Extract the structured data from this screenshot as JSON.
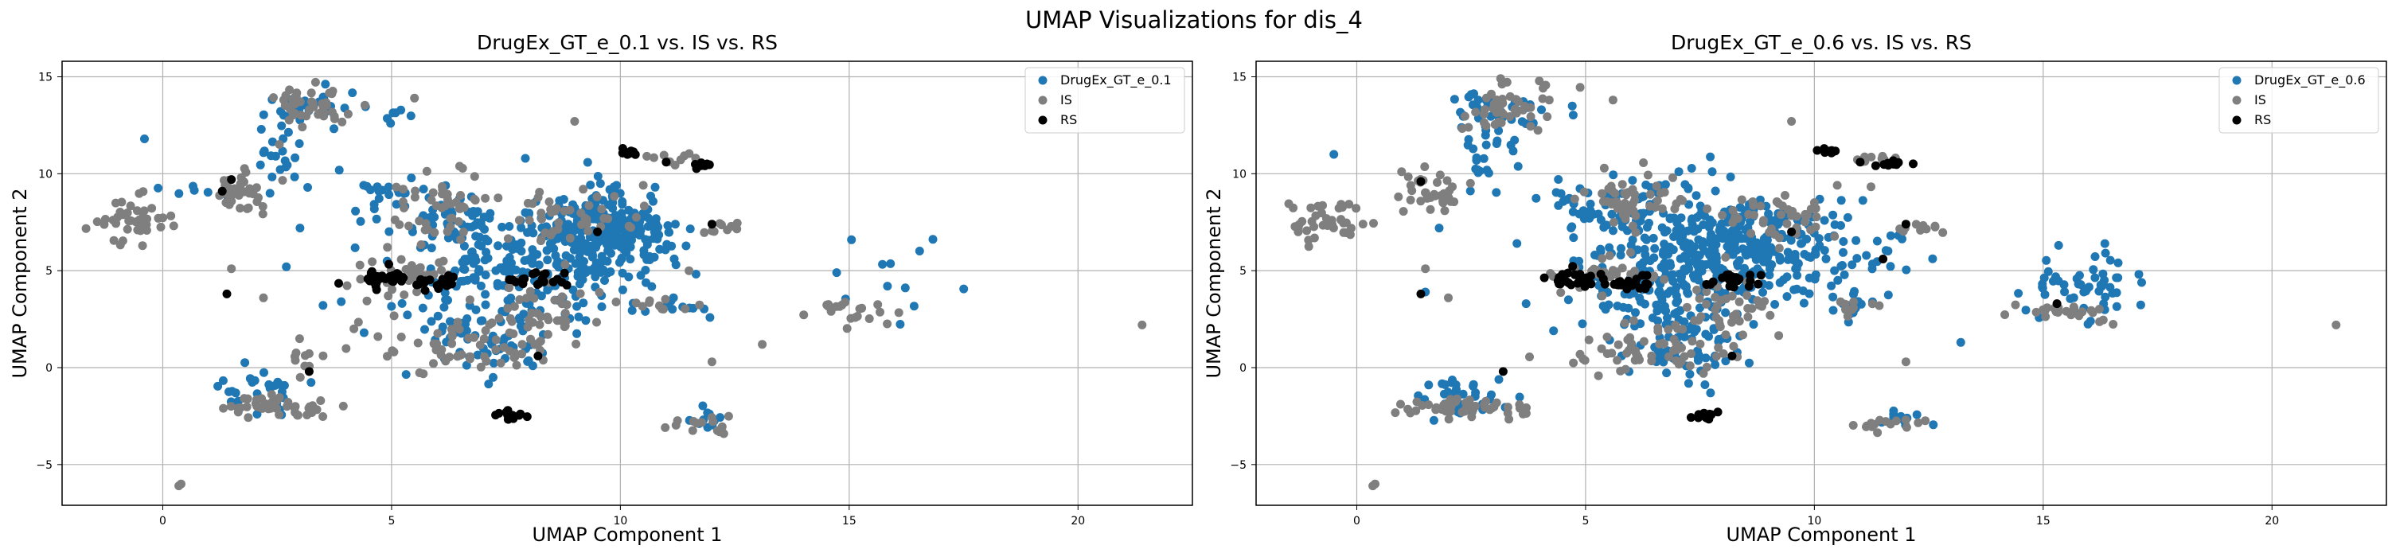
{
  "figure": {
    "title": "UMAP Visualizations for dis_4"
  },
  "colors": {
    "series_blue": "#1f77b4",
    "series_gray": "#7f7f7f",
    "series_black": "#000000",
    "grid": "#b0b0b0"
  },
  "chart_data": [
    {
      "type": "scatter",
      "title": "DrugEx_GT_e_0.1 vs. IS vs. RS",
      "xlabel": "UMAP Component 1",
      "ylabel": "UMAP Component 2",
      "xlim": [
        -2.2,
        22.5
      ],
      "ylim": [
        -7.1,
        15.8
      ],
      "xticks": [
        0,
        5,
        10,
        15,
        20
      ],
      "yticks": [
        -5,
        0,
        5,
        10,
        15
      ],
      "grid": true,
      "legend_position": "top-right",
      "series": [
        {
          "name": "DrugEx_GT_e_0.1",
          "color": "#1f77b4",
          "clusters": [
            {
              "cx": 9.6,
              "cy": 6.9,
              "sx": 0.7,
              "sy": 1.0,
              "n": 260
            },
            {
              "cx": 7.8,
              "cy": 5.2,
              "sx": 1.3,
              "sy": 1.6,
              "n": 220
            },
            {
              "cx": 6.2,
              "cy": 7.5,
              "sx": 0.6,
              "sy": 0.8,
              "n": 40
            },
            {
              "cx": 7.0,
              "cy": 1.5,
              "sx": 0.8,
              "sy": 1.0,
              "n": 50
            },
            {
              "cx": 3.1,
              "cy": 13.4,
              "sx": 0.5,
              "sy": 0.5,
              "n": 30
            },
            {
              "cx": 2.5,
              "cy": 11.0,
              "sx": 0.3,
              "sy": 0.9,
              "n": 20
            },
            {
              "cx": 2.2,
              "cy": -1.3,
              "sx": 0.5,
              "sy": 0.5,
              "n": 30
            },
            {
              "cx": 4.9,
              "cy": 8.6,
              "sx": 0.5,
              "sy": 0.6,
              "n": 25
            },
            {
              "cx": 11.0,
              "cy": 3.3,
              "sx": 0.5,
              "sy": 0.3,
              "n": 12
            },
            {
              "cx": 11.8,
              "cy": -2.6,
              "sx": 0.3,
              "sy": 0.4,
              "n": 10
            },
            {
              "cx": 15.8,
              "cy": 4.0,
              "sx": 0.6,
              "sy": 1.2,
              "n": 12
            },
            {
              "cx": 5.1,
              "cy": 12.9,
              "sx": 0.2,
              "sy": 0.2,
              "n": 6
            },
            {
              "cx": 0.7,
              "cy": 9.1,
              "sx": 0.4,
              "sy": 0.2,
              "n": 8
            }
          ],
          "points": [
            {
              "x": -0.4,
              "y": 11.8
            },
            {
              "x": 3.0,
              "y": 7.2
            },
            {
              "x": 2.7,
              "y": 5.2
            },
            {
              "x": 3.9,
              "y": 3.4
            },
            {
              "x": 4.4,
              "y": 1.8
            },
            {
              "x": 11.2,
              "y": 7.4
            }
          ]
        },
        {
          "name": "IS",
          "color": "#7f7f7f",
          "clusters": [
            {
              "cx": 3.3,
              "cy": 13.6,
              "sx": 0.5,
              "sy": 0.6,
              "n": 45
            },
            {
              "cx": 1.7,
              "cy": 9.0,
              "sx": 0.3,
              "sy": 0.6,
              "n": 35
            },
            {
              "cx": -0.7,
              "cy": 7.6,
              "sx": 0.4,
              "sy": 0.6,
              "n": 40
            },
            {
              "cx": 6.2,
              "cy": 8.5,
              "sx": 0.6,
              "sy": 0.9,
              "n": 50
            },
            {
              "cx": 6.5,
              "cy": 1.0,
              "sx": 0.9,
              "sy": 0.6,
              "n": 60
            },
            {
              "cx": 8.4,
              "cy": 3.0,
              "sx": 0.6,
              "sy": 0.9,
              "n": 40
            },
            {
              "cx": 8.9,
              "cy": 7.8,
              "sx": 0.7,
              "sy": 0.6,
              "n": 40
            },
            {
              "cx": 2.5,
              "cy": -2.0,
              "sx": 0.6,
              "sy": 0.3,
              "n": 45
            },
            {
              "cx": 5.3,
              "cy": 4.7,
              "sx": 0.5,
              "sy": 0.6,
              "n": 35
            },
            {
              "cx": 15.2,
              "cy": 3.0,
              "sx": 0.5,
              "sy": 0.3,
              "n": 20
            },
            {
              "cx": 11.6,
              "cy": -2.9,
              "sx": 0.4,
              "sy": 0.3,
              "n": 15
            },
            {
              "cx": 12.3,
              "cy": 7.2,
              "sx": 0.3,
              "sy": 0.2,
              "n": 10
            },
            {
              "cx": 11.2,
              "cy": 10.8,
              "sx": 0.3,
              "sy": 0.2,
              "n": 10
            },
            {
              "cx": 10.8,
              "cy": 3.2,
              "sx": 0.3,
              "sy": 0.2,
              "n": 10
            },
            {
              "cx": 3.2,
              "cy": 0.5,
              "sx": 0.2,
              "sy": 0.5,
              "n": 10
            }
          ],
          "points": [
            {
              "x": 0.4,
              "y": -6.0
            },
            {
              "x": 0.35,
              "y": -6.1
            },
            {
              "x": 21.4,
              "y": 2.2
            },
            {
              "x": 13.1,
              "y": 1.2
            },
            {
              "x": 12.0,
              "y": 0.3
            },
            {
              "x": 5.5,
              "y": 13.9
            },
            {
              "x": 9.0,
              "y": 12.7
            },
            {
              "x": 11.5,
              "y": 5.0
            },
            {
              "x": 1.5,
              "y": 5.1
            },
            {
              "x": 2.2,
              "y": 3.6
            },
            {
              "x": 10.5,
              "y": 9.4
            }
          ]
        },
        {
          "name": "RS",
          "color": "#000000",
          "clusters": [
            {
              "cx": 4.8,
              "cy": 4.6,
              "sx": 0.35,
              "sy": 0.25,
              "n": 30
            },
            {
              "cx": 6.0,
              "cy": 4.4,
              "sx": 0.3,
              "sy": 0.2,
              "n": 20
            },
            {
              "cx": 8.2,
              "cy": 4.5,
              "sx": 0.3,
              "sy": 0.2,
              "n": 20
            },
            {
              "cx": 7.6,
              "cy": -2.5,
              "sx": 0.15,
              "sy": 0.1,
              "n": 12
            },
            {
              "cx": 11.8,
              "cy": 10.5,
              "sx": 0.15,
              "sy": 0.1,
              "n": 10
            },
            {
              "cx": 10.3,
              "cy": 11.2,
              "sx": 0.15,
              "sy": 0.1,
              "n": 8
            }
          ],
          "points": [
            {
              "x": 1.4,
              "y": 3.8
            },
            {
              "x": 3.2,
              "y": -0.2
            },
            {
              "x": 1.3,
              "y": 9.1
            },
            {
              "x": 8.2,
              "y": 0.6
            },
            {
              "x": 9.5,
              "y": 7.0
            },
            {
              "x": 11.0,
              "y": 10.6
            },
            {
              "x": 12.0,
              "y": 7.4
            },
            {
              "x": 1.5,
              "y": 9.7
            }
          ]
        }
      ]
    },
    {
      "type": "scatter",
      "title": "DrugEx_GT_e_0.6 vs. IS vs. RS",
      "xlabel": "UMAP Component 1",
      "ylabel": "UMAP Component 2",
      "xlim": [
        -2.2,
        22.5
      ],
      "ylim": [
        -7.1,
        15.8
      ],
      "xticks": [
        0,
        5,
        10,
        15,
        20
      ],
      "yticks": [
        -5,
        0,
        5,
        10,
        15
      ],
      "grid": true,
      "legend_position": "top-right",
      "series": [
        {
          "name": "DrugEx_GT_e_0.6",
          "color": "#1f77b4",
          "clusters": [
            {
              "cx": 8.5,
              "cy": 6.2,
              "sx": 1.2,
              "sy": 1.3,
              "n": 300
            },
            {
              "cx": 6.8,
              "cy": 4.5,
              "sx": 1.0,
              "sy": 1.5,
              "n": 160
            },
            {
              "cx": 6.2,
              "cy": 8.0,
              "sx": 0.8,
              "sy": 1.0,
              "n": 60
            },
            {
              "cx": 7.2,
              "cy": 1.5,
              "sx": 0.8,
              "sy": 1.0,
              "n": 60
            },
            {
              "cx": 3.2,
              "cy": 13.3,
              "sx": 0.6,
              "sy": 0.6,
              "n": 35
            },
            {
              "cx": 2.8,
              "cy": 11.0,
              "sx": 0.4,
              "sy": 0.9,
              "n": 25
            },
            {
              "cx": 2.3,
              "cy": -1.5,
              "sx": 0.6,
              "sy": 0.5,
              "n": 35
            },
            {
              "cx": 5.0,
              "cy": 8.5,
              "sx": 0.5,
              "sy": 0.6,
              "n": 30
            },
            {
              "cx": 16.0,
              "cy": 4.0,
              "sx": 0.7,
              "sy": 0.9,
              "n": 55
            },
            {
              "cx": 11.0,
              "cy": 3.3,
              "sx": 0.5,
              "sy": 0.4,
              "n": 15
            },
            {
              "cx": 12.0,
              "cy": -2.8,
              "sx": 0.3,
              "sy": 0.3,
              "n": 10
            },
            {
              "cx": 11.2,
              "cy": 5.5,
              "sx": 0.3,
              "sy": 0.3,
              "n": 8
            }
          ],
          "points": [
            {
              "x": -0.5,
              "y": 11.0
            },
            {
              "x": 1.8,
              "y": 7.2
            },
            {
              "x": 1.5,
              "y": 3.9
            },
            {
              "x": 3.7,
              "y": 3.3
            },
            {
              "x": 4.3,
              "y": 1.9
            },
            {
              "x": 13.2,
              "y": 1.3
            },
            {
              "x": 3.5,
              "y": 6.4
            }
          ]
        },
        {
          "name": "IS",
          "color": "#7f7f7f",
          "clusters": [
            {
              "cx": 3.4,
              "cy": 13.6,
              "sx": 0.5,
              "sy": 0.6,
              "n": 45
            },
            {
              "cx": 1.6,
              "cy": 9.1,
              "sx": 0.4,
              "sy": 0.5,
              "n": 35
            },
            {
              "cx": -0.6,
              "cy": 7.6,
              "sx": 0.4,
              "sy": 0.6,
              "n": 40
            },
            {
              "cx": 6.0,
              "cy": 8.6,
              "sx": 0.6,
              "sy": 0.8,
              "n": 50
            },
            {
              "cx": 6.5,
              "cy": 0.9,
              "sx": 0.9,
              "sy": 0.6,
              "n": 60
            },
            {
              "cx": 8.3,
              "cy": 3.0,
              "sx": 0.6,
              "sy": 0.9,
              "n": 40
            },
            {
              "cx": 9.2,
              "cy": 7.8,
              "sx": 0.7,
              "sy": 0.6,
              "n": 45
            },
            {
              "cx": 2.4,
              "cy": -2.0,
              "sx": 0.6,
              "sy": 0.3,
              "n": 45
            },
            {
              "cx": 5.4,
              "cy": 4.8,
              "sx": 0.5,
              "sy": 0.5,
              "n": 35
            },
            {
              "cx": 15.6,
              "cy": 2.9,
              "sx": 0.6,
              "sy": 0.3,
              "n": 25
            },
            {
              "cx": 11.6,
              "cy": -2.9,
              "sx": 0.4,
              "sy": 0.3,
              "n": 15
            },
            {
              "cx": 12.3,
              "cy": 7.2,
              "sx": 0.3,
              "sy": 0.2,
              "n": 10
            },
            {
              "cx": 11.3,
              "cy": 10.8,
              "sx": 0.3,
              "sy": 0.2,
              "n": 10
            },
            {
              "cx": 10.8,
              "cy": 3.2,
              "sx": 0.3,
              "sy": 0.2,
              "n": 10
            }
          ],
          "points": [
            {
              "x": 0.4,
              "y": -6.0
            },
            {
              "x": 0.35,
              "y": -6.1
            },
            {
              "x": 21.4,
              "y": 2.2
            },
            {
              "x": 12.0,
              "y": 0.3
            },
            {
              "x": 5.6,
              "y": 13.8
            },
            {
              "x": 9.5,
              "y": 12.7
            },
            {
              "x": 1.5,
              "y": 5.1
            },
            {
              "x": 2.0,
              "y": 3.6
            },
            {
              "x": 10.5,
              "y": 9.4
            }
          ]
        },
        {
          "name": "RS",
          "color": "#000000",
          "clusters": [
            {
              "cx": 4.8,
              "cy": 4.6,
              "sx": 0.35,
              "sy": 0.25,
              "n": 30
            },
            {
              "cx": 6.0,
              "cy": 4.4,
              "sx": 0.3,
              "sy": 0.2,
              "n": 20
            },
            {
              "cx": 8.2,
              "cy": 4.5,
              "sx": 0.3,
              "sy": 0.2,
              "n": 20
            },
            {
              "cx": 7.6,
              "cy": -2.5,
              "sx": 0.15,
              "sy": 0.1,
              "n": 12
            },
            {
              "cx": 11.8,
              "cy": 10.5,
              "sx": 0.15,
              "sy": 0.1,
              "n": 10
            },
            {
              "cx": 10.3,
              "cy": 11.2,
              "sx": 0.15,
              "sy": 0.1,
              "n": 8
            }
          ],
          "points": [
            {
              "x": 1.4,
              "y": 3.8
            },
            {
              "x": 3.2,
              "y": -0.2
            },
            {
              "x": 1.4,
              "y": 9.6
            },
            {
              "x": 8.2,
              "y": 0.6
            },
            {
              "x": 9.5,
              "y": 7.0
            },
            {
              "x": 11.0,
              "y": 10.6
            },
            {
              "x": 12.0,
              "y": 7.4
            },
            {
              "x": 15.3,
              "y": 3.3
            },
            {
              "x": 11.5,
              "y": 5.6
            }
          ]
        }
      ]
    }
  ]
}
